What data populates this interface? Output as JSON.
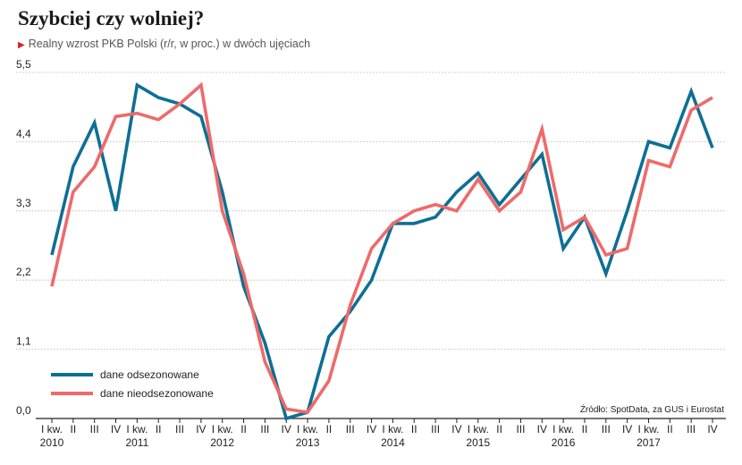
{
  "header": {
    "title": "Szybciej czy wolniej?",
    "subtitle": "Realny wzrost PKB Polski (r/r, w proc.) w dwóch ujęciach"
  },
  "source": "Źródło: SpotData, za GUS i Eurostat",
  "colors": {
    "series1": "#0e6f94",
    "series2": "#ee6a6a",
    "grid": "#b9b0a6",
    "axis": "#222222"
  },
  "chart_data": {
    "type": "line",
    "categories": [
      "I kw.",
      "II",
      "III",
      "IV",
      "I kw.",
      "II",
      "III",
      "IV",
      "I kw.",
      "II",
      "III",
      "IV",
      "I kw.",
      "II",
      "III",
      "IV",
      "I kw.",
      "II",
      "III",
      "IV",
      "I kw.",
      "II",
      "III",
      "IV",
      "I kw.",
      "II",
      "III",
      "IV",
      "I kw.",
      "II",
      "III",
      "IV"
    ],
    "years": [
      "2010",
      "2011",
      "2012",
      "2013",
      "2014",
      "2015",
      "2016",
      "2017"
    ],
    "yticks": [
      "0,0",
      "1,1",
      "2,2",
      "3,3",
      "4,4",
      "5,5"
    ],
    "ylim": [
      0,
      5.5
    ],
    "grid": true,
    "legend": "bottom-left",
    "series": [
      {
        "name": "dane odsezonowane",
        "values": [
          2.6,
          4.0,
          4.7,
          3.3,
          5.3,
          5.1,
          5.0,
          4.8,
          3.6,
          2.1,
          1.2,
          0.0,
          0.1,
          1.3,
          1.7,
          2.2,
          3.1,
          3.1,
          3.2,
          3.6,
          3.9,
          3.4,
          3.8,
          4.2,
          2.7,
          3.2,
          2.3,
          3.3,
          4.4,
          4.3,
          5.2,
          4.3
        ]
      },
      {
        "name": "dane nieodsezonowane",
        "values": [
          2.1,
          3.6,
          4.0,
          4.8,
          4.85,
          4.75,
          5.0,
          5.3,
          3.3,
          2.3,
          0.9,
          0.15,
          0.1,
          0.6,
          1.8,
          2.7,
          3.1,
          3.3,
          3.4,
          3.3,
          3.8,
          3.3,
          3.6,
          4.6,
          3.0,
          3.2,
          2.6,
          2.7,
          4.1,
          4.0,
          4.9,
          5.1
        ]
      }
    ]
  }
}
